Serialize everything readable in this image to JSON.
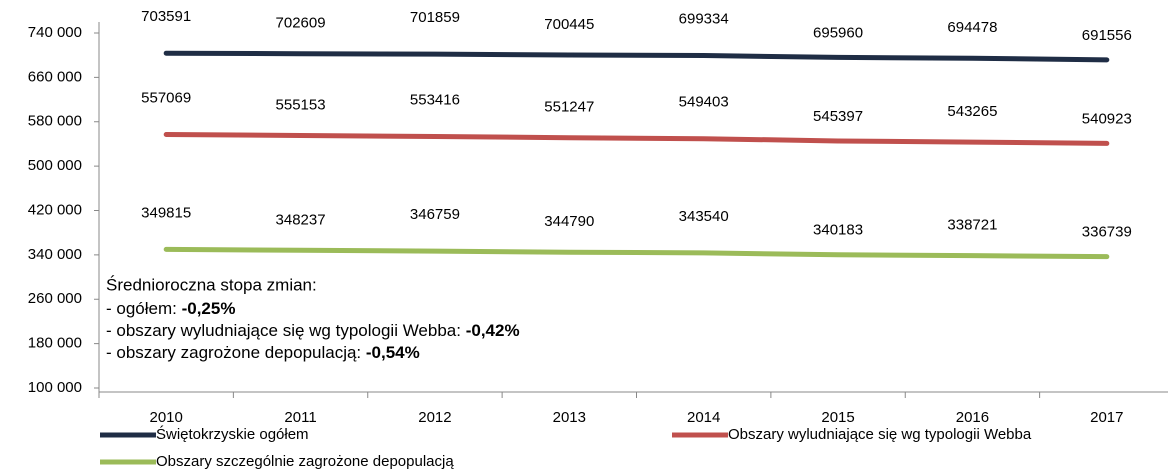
{
  "chart_data": {
    "type": "line",
    "categories": [
      "2010",
      "2011",
      "2012",
      "2013",
      "2014",
      "2015",
      "2016",
      "2017"
    ],
    "series": [
      {
        "name": "Świętokrzyskie ogółem",
        "color": "#1f2d45",
        "values": [
          703591,
          702609,
          701859,
          700445,
          699334,
          695960,
          694478,
          691556
        ]
      },
      {
        "name": "Obszary wyludniające się wg typologii Webba",
        "color": "#c0504d",
        "values": [
          557069,
          555153,
          553416,
          551247,
          549403,
          545397,
          543265,
          540923
        ]
      },
      {
        "name": "Obszary szczególnie zagrożone depopulacją",
        "color": "#9bbb59",
        "values": [
          349815,
          348237,
          346759,
          344790,
          343540,
          340183,
          338721,
          336739
        ]
      }
    ],
    "ylim": [
      100000,
      740000
    ],
    "yticks": [
      {
        "value": 100000,
        "label": "100 000"
      },
      {
        "value": 180000,
        "label": "180 000"
      },
      {
        "value": 260000,
        "label": "260 000"
      },
      {
        "value": 340000,
        "label": "340 000"
      },
      {
        "value": 420000,
        "label": "420 000"
      },
      {
        "value": 500000,
        "label": "500 000"
      },
      {
        "value": 580000,
        "label": "580 000"
      },
      {
        "value": 660000,
        "label": "660 000"
      },
      {
        "value": 740000,
        "label": "740 000"
      }
    ],
    "annotation": {
      "title": "Średnioroczna stopa zmian:",
      "items": [
        {
          "label": "- ogółem: ",
          "value": "-0,25%"
        },
        {
          "label": "- obszary wyludniające się wg typologii Webba: ",
          "value": "-0,42%"
        },
        {
          "label": "- obszary zagrożone depopulacją: ",
          "value": "-0,54%"
        }
      ]
    }
  }
}
